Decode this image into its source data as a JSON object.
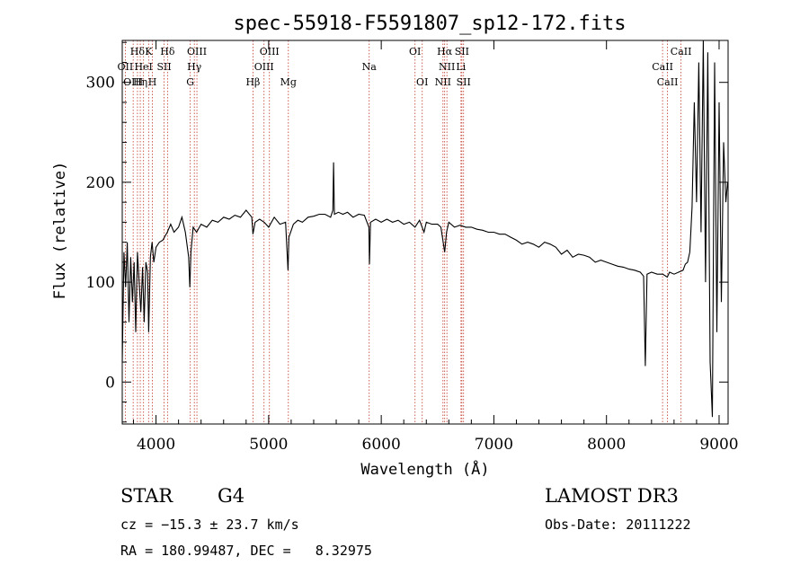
{
  "chart_data": {
    "type": "line",
    "title": "spec-55918-F5591807_sp12-172.fits",
    "xlabel": "Wavelength (Å)",
    "ylabel": "Flux (relative)",
    "xlim": [
      3700,
      9080
    ],
    "ylim": [
      -42,
      342
    ],
    "x_ticks": [
      4000,
      5000,
      6000,
      7000,
      8000,
      9000
    ],
    "y_ticks": [
      0,
      100,
      200,
      300
    ],
    "series": [
      {
        "name": "flux",
        "points": [
          [
            3700,
            20
          ],
          [
            3715,
            130
          ],
          [
            3730,
            95
          ],
          [
            3745,
            140
          ],
          [
            3760,
            60
          ],
          [
            3775,
            125
          ],
          [
            3790,
            80
          ],
          [
            3805,
            120
          ],
          [
            3820,
            50
          ],
          [
            3835,
            130
          ],
          [
            3850,
            100
          ],
          [
            3865,
            70
          ],
          [
            3880,
            115
          ],
          [
            3895,
            60
          ],
          [
            3910,
            120
          ],
          [
            3925,
            110
          ],
          [
            3935,
            50
          ],
          [
            3950,
            125
          ],
          [
            3965,
            140
          ],
          [
            3980,
            120
          ],
          [
            4000,
            135
          ],
          [
            4030,
            140
          ],
          [
            4060,
            142
          ],
          [
            4100,
            150
          ],
          [
            4130,
            158
          ],
          [
            4160,
            150
          ],
          [
            4200,
            155
          ],
          [
            4230,
            165
          ],
          [
            4260,
            150
          ],
          [
            4290,
            125
          ],
          [
            4300,
            95
          ],
          [
            4310,
            130
          ],
          [
            4330,
            155
          ],
          [
            4360,
            150
          ],
          [
            4400,
            158
          ],
          [
            4450,
            155
          ],
          [
            4500,
            162
          ],
          [
            4550,
            160
          ],
          [
            4600,
            165
          ],
          [
            4650,
            163
          ],
          [
            4700,
            167
          ],
          [
            4750,
            165
          ],
          [
            4800,
            172
          ],
          [
            4850,
            165
          ],
          [
            4861,
            148
          ],
          [
            4880,
            160
          ],
          [
            4920,
            163
          ],
          [
            4960,
            160
          ],
          [
            5000,
            155
          ],
          [
            5050,
            165
          ],
          [
            5100,
            158
          ],
          [
            5150,
            160
          ],
          [
            5172,
            112
          ],
          [
            5180,
            145
          ],
          [
            5220,
            158
          ],
          [
            5260,
            162
          ],
          [
            5300,
            160
          ],
          [
            5350,
            165
          ],
          [
            5400,
            166
          ],
          [
            5450,
            168
          ],
          [
            5500,
            168
          ],
          [
            5550,
            165
          ],
          [
            5570,
            172
          ],
          [
            5577,
            220
          ],
          [
            5584,
            168
          ],
          [
            5620,
            170
          ],
          [
            5660,
            168
          ],
          [
            5700,
            170
          ],
          [
            5750,
            165
          ],
          [
            5800,
            168
          ],
          [
            5850,
            167
          ],
          [
            5890,
            155
          ],
          [
            5895,
            118
          ],
          [
            5905,
            160
          ],
          [
            5950,
            163
          ],
          [
            6000,
            160
          ],
          [
            6050,
            163
          ],
          [
            6100,
            160
          ],
          [
            6150,
            162
          ],
          [
            6200,
            158
          ],
          [
            6250,
            160
          ],
          [
            6300,
            155
          ],
          [
            6340,
            162
          ],
          [
            6380,
            150
          ],
          [
            6400,
            160
          ],
          [
            6450,
            158
          ],
          [
            6500,
            158
          ],
          [
            6530,
            155
          ],
          [
            6563,
            130
          ],
          [
            6580,
            150
          ],
          [
            6600,
            160
          ],
          [
            6650,
            155
          ],
          [
            6700,
            157
          ],
          [
            6750,
            155
          ],
          [
            6800,
            155
          ],
          [
            6850,
            153
          ],
          [
            6900,
            152
          ],
          [
            6950,
            150
          ],
          [
            7000,
            150
          ],
          [
            7050,
            148
          ],
          [
            7100,
            148
          ],
          [
            7150,
            145
          ],
          [
            7200,
            142
          ],
          [
            7250,
            138
          ],
          [
            7300,
            140
          ],
          [
            7350,
            138
          ],
          [
            7400,
            135
          ],
          [
            7450,
            140
          ],
          [
            7500,
            138
          ],
          [
            7550,
            135
          ],
          [
            7600,
            128
          ],
          [
            7650,
            132
          ],
          [
            7700,
            125
          ],
          [
            7750,
            128
          ],
          [
            7800,
            127
          ],
          [
            7850,
            125
          ],
          [
            7900,
            120
          ],
          [
            7950,
            122
          ],
          [
            8000,
            120
          ],
          [
            8050,
            118
          ],
          [
            8100,
            116
          ],
          [
            8150,
            115
          ],
          [
            8200,
            113
          ],
          [
            8250,
            112
          ],
          [
            8300,
            110
          ],
          [
            8330,
            106
          ],
          [
            8345,
            16
          ],
          [
            8360,
            108
          ],
          [
            8400,
            110
          ],
          [
            8450,
            108
          ],
          [
            8500,
            108
          ],
          [
            8540,
            105
          ],
          [
            8560,
            110
          ],
          [
            8600,
            108
          ],
          [
            8640,
            110
          ],
          [
            8680,
            112
          ],
          [
            8700,
            118
          ],
          [
            8720,
            120
          ],
          [
            8740,
            130
          ],
          [
            8760,
            175
          ],
          [
            8780,
            280
          ],
          [
            8800,
            180
          ],
          [
            8820,
            320
          ],
          [
            8840,
            150
          ],
          [
            8860,
            345
          ],
          [
            8880,
            100
          ],
          [
            8900,
            330
          ],
          [
            8920,
            20
          ],
          [
            8940,
            -35
          ],
          [
            8960,
            320
          ],
          [
            8980,
            50
          ],
          [
            9000,
            280
          ],
          [
            9020,
            80
          ],
          [
            9040,
            240
          ],
          [
            9060,
            180
          ],
          [
            9075,
            200
          ]
        ]
      }
    ],
    "line_markers": [
      {
        "label": "Hδ",
        "wave": 3835,
        "row": 1
      },
      {
        "label": "K",
        "wave": 3934,
        "row": 1
      },
      {
        "label": "Hδ",
        "wave": 4102,
        "row": 1
      },
      {
        "label": "OIII",
        "wave": 4363,
        "row": 1
      },
      {
        "label": "OIII",
        "wave": 5007,
        "row": 1
      },
      {
        "label": "OI",
        "wave": 6300,
        "row": 1
      },
      {
        "label": "Hα",
        "wave": 6563,
        "row": 1
      },
      {
        "label": "SII",
        "wave": 6716,
        "row": 1
      },
      {
        "label": "CaII",
        "wave": 8662,
        "row": 1
      },
      {
        "label": "OII",
        "wave": 3727,
        "row": 2
      },
      {
        "label": "HeI",
        "wave": 3889,
        "row": 2
      },
      {
        "label": "SII",
        "wave": 4072,
        "row": 2
      },
      {
        "label": "Hγ",
        "wave": 4340,
        "row": 2
      },
      {
        "label": "OIII",
        "wave": 4959,
        "row": 2
      },
      {
        "label": "Na",
        "wave": 5893,
        "row": 2
      },
      {
        "label": "NII",
        "wave": 6583,
        "row": 2
      },
      {
        "label": "Li",
        "wave": 6708,
        "row": 2
      },
      {
        "label": "CaII",
        "wave": 8498,
        "row": 2
      },
      {
        "label": "OIII",
        "wave": 3797,
        "row": 3
      },
      {
        "label": "Hη",
        "wave": 3860,
        "row": 3
      },
      {
        "label": "H",
        "wave": 3968,
        "row": 3
      },
      {
        "label": "G",
        "wave": 4304,
        "row": 3
      },
      {
        "label": "Hβ",
        "wave": 4861,
        "row": 3
      },
      {
        "label": "Mg",
        "wave": 5175,
        "row": 3
      },
      {
        "label": "OI",
        "wave": 6364,
        "row": 3
      },
      {
        "label": "NII",
        "wave": 6548,
        "row": 3
      },
      {
        "label": "SII",
        "wave": 6731,
        "row": 3
      },
      {
        "label": "CaII",
        "wave": 8542,
        "row": 3
      }
    ],
    "marker_color": "#c0392b",
    "line_color": "#000000"
  },
  "info": {
    "object_class": "STAR",
    "subclass": "G4",
    "survey": "LAMOST DR3",
    "redshift": "cz = −15.3 ± 23.7 km/s",
    "obs_date": "Obs-Date: 20111222",
    "coords": "RA = 180.99487, DEC =   8.32975"
  }
}
